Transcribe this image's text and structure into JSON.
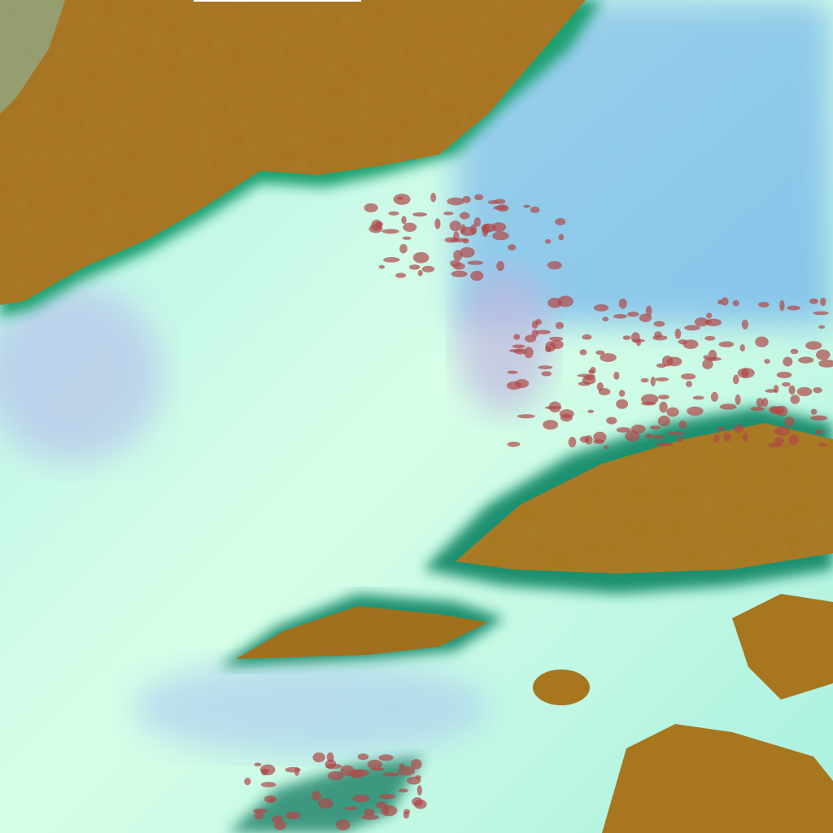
{
  "image": {
    "kind": "false-color satellite imagery",
    "colors": {
      "land": "#a8721e",
      "land_dark": "#7a5a18",
      "low_cloud": "#b8f8e0",
      "cloud_bright": "#e8fff0",
      "ocean_cloud": "#8cc8e8",
      "cloud_lavender": "#b8b8e8",
      "edge_green": "#20c090",
      "cell_red": "#b04848"
    }
  }
}
